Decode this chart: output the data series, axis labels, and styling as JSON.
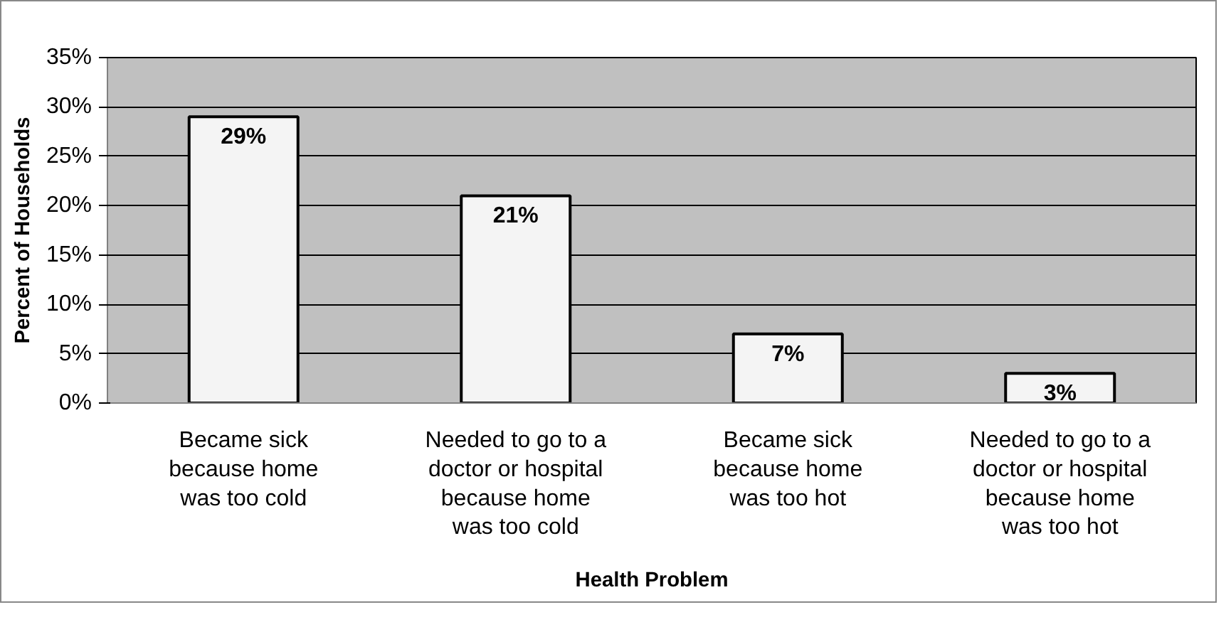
{
  "chart_data": {
    "type": "bar",
    "categories": [
      "Became sick\nbecause home\nwas too cold",
      "Needed to go to a\ndoctor or hospital\nbecause home\nwas too cold",
      "Became sick\nbecause home\nwas too hot",
      "Needed to go to a\ndoctor or hospital\nbecause home\nwas too hot"
    ],
    "values": [
      29,
      21,
      7,
      3
    ],
    "value_labels": [
      "29%",
      "21%",
      "7%",
      "3%"
    ],
    "color": "#f4f4f4",
    "xlabel": "Health Problem",
    "ylabel": "Percent of Households",
    "ylim": [
      0,
      35
    ],
    "yticks": [
      {
        "value": 0,
        "label": "0%"
      },
      {
        "value": 5,
        "label": "5%"
      },
      {
        "value": 10,
        "label": "10%"
      },
      {
        "value": 15,
        "label": "15%"
      },
      {
        "value": 20,
        "label": "20%"
      },
      {
        "value": 25,
        "label": "25%"
      },
      {
        "value": 30,
        "label": "30%"
      },
      {
        "value": 35,
        "label": "35%"
      }
    ],
    "grid": "y"
  }
}
